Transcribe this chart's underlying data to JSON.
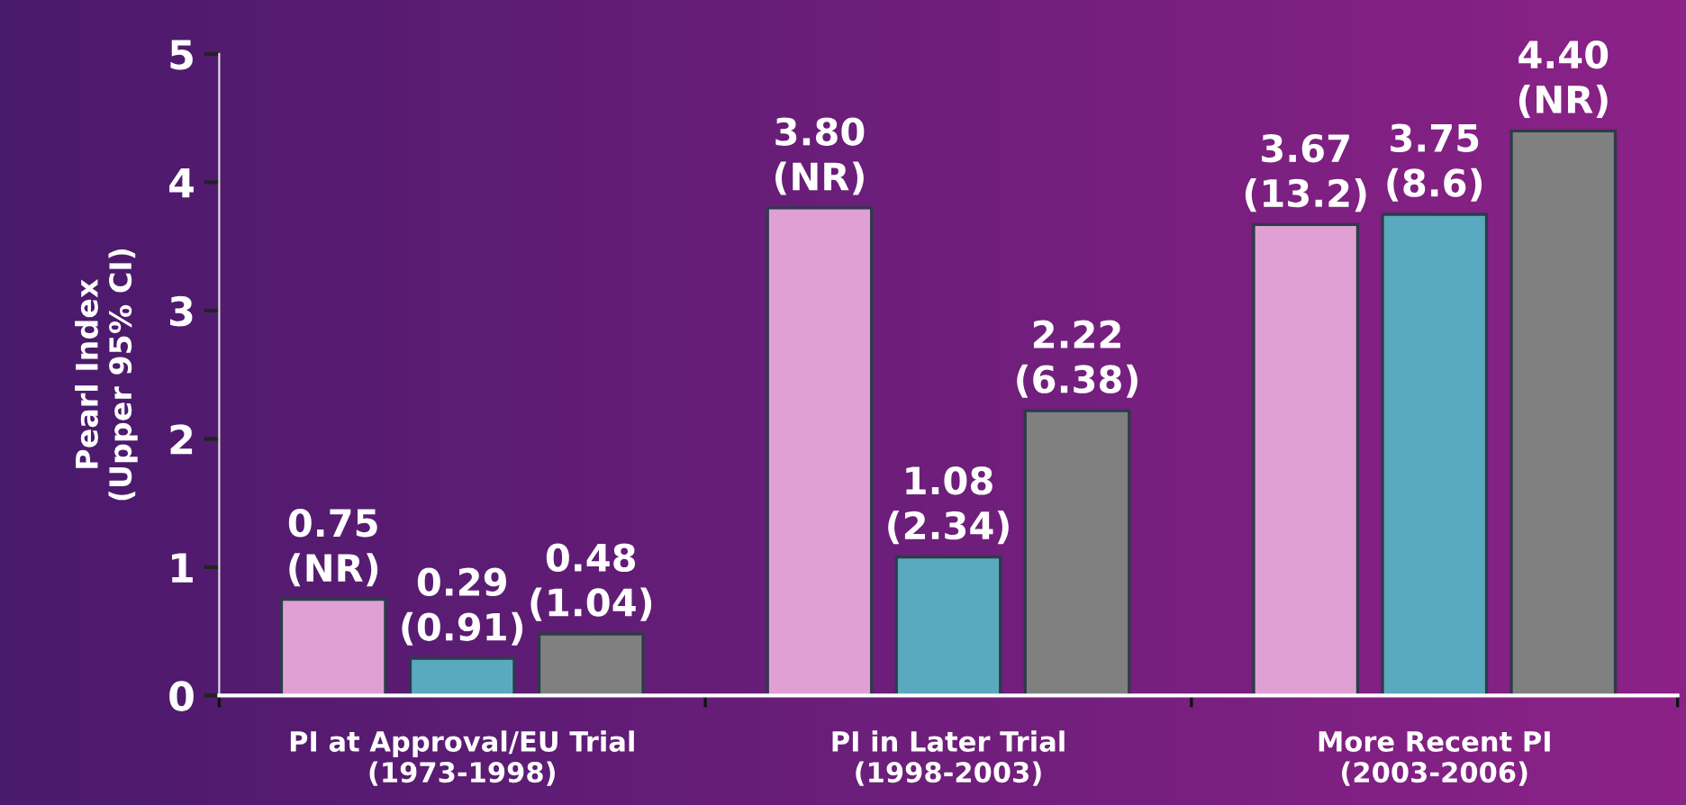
{
  "chart_data": {
    "type": "bar",
    "ylabel": "Pearl Index\n(Upper 95% CI)",
    "categories": [
      "PI at Approval/EU Trial\n(1973-1998)",
      "PI in Later Trial\n(1998-2003)",
      "More Recent PI\n(2003-2006)"
    ],
    "series": [
      {
        "color": "#e0a0d4",
        "values": [
          0.75,
          3.8,
          3.67
        ],
        "value_labels": [
          "0.75\n(NR)",
          "3.80\n(NR)",
          "3.67\n(13.2)"
        ]
      },
      {
        "color": "#5aaabf",
        "values": [
          0.29,
          1.08,
          3.75
        ],
        "value_labels": [
          "0.29\n(0.91)",
          "1.08\n(2.34)",
          "3.75\n(8.6)"
        ]
      },
      {
        "color": "#808080",
        "values": [
          0.48,
          2.22,
          4.4
        ],
        "value_labels": [
          "0.48\n(1.04)",
          "2.22\n(6.38)",
          "4.40\n(NR)"
        ]
      }
    ],
    "ylim": [
      0,
      5
    ],
    "yticks": [
      0,
      1,
      2,
      3,
      4,
      5
    ]
  }
}
